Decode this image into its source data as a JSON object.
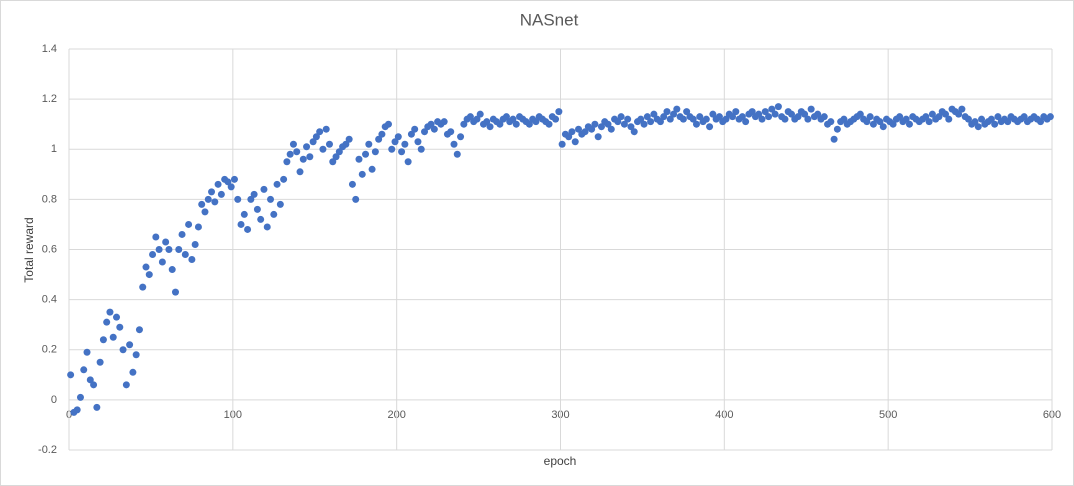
{
  "chart_data": {
    "type": "scatter",
    "title": "NASnet",
    "x_label": "epoch",
    "y_label": "Total reward",
    "color": "#4472c4",
    "grid": true,
    "xlim": [
      0,
      600
    ],
    "xticks": [
      0,
      100,
      200,
      300,
      400,
      500,
      600
    ],
    "ylim": [
      -0.2,
      1.4
    ],
    "yticks": [
      -0.2,
      0,
      0.2,
      0.4,
      0.6,
      0.8,
      1,
      1.2,
      1.4
    ],
    "x": [
      1,
      3,
      5,
      7,
      9,
      11,
      13,
      15,
      17,
      19,
      21,
      23,
      25,
      27,
      29,
      31,
      33,
      35,
      37,
      39,
      41,
      43,
      45,
      47,
      49,
      51,
      53,
      55,
      57,
      59,
      61,
      63,
      65,
      67,
      69,
      71,
      73,
      75,
      77,
      79,
      81,
      83,
      85,
      87,
      89,
      91,
      93,
      95,
      97,
      99,
      101,
      103,
      105,
      107,
      109,
      111,
      113,
      115,
      117,
      119,
      121,
      123,
      125,
      127,
      129,
      131,
      133,
      135,
      137,
      139,
      141,
      143,
      145,
      147,
      149,
      151,
      153,
      155,
      157,
      159,
      161,
      163,
      165,
      167,
      169,
      171,
      173,
      175,
      177,
      179,
      181,
      183,
      185,
      187,
      189,
      191,
      193,
      195,
      197,
      199,
      201,
      203,
      205,
      207,
      209,
      211,
      213,
      215,
      217,
      219,
      221,
      223,
      225,
      227,
      229,
      231,
      233,
      235,
      237,
      239,
      241,
      243,
      245,
      247,
      249,
      251,
      253,
      255,
      257,
      259,
      261,
      263,
      265,
      267,
      269,
      271,
      273,
      275,
      277,
      279,
      281,
      283,
      285,
      287,
      289,
      291,
      293,
      295,
      297,
      299,
      301,
      303,
      305,
      307,
      309,
      311,
      313,
      315,
      317,
      319,
      321,
      323,
      325,
      327,
      329,
      331,
      333,
      335,
      337,
      339,
      341,
      343,
      345,
      347,
      349,
      351,
      353,
      355,
      357,
      359,
      361,
      363,
      365,
      367,
      369,
      371,
      373,
      375,
      377,
      379,
      381,
      383,
      385,
      387,
      389,
      391,
      393,
      395,
      397,
      399,
      401,
      403,
      405,
      407,
      409,
      411,
      413,
      415,
      417,
      419,
      421,
      423,
      425,
      427,
      429,
      431,
      433,
      435,
      437,
      439,
      441,
      443,
      445,
      447,
      449,
      451,
      453,
      455,
      457,
      459,
      461,
      463,
      465,
      467,
      469,
      471,
      473,
      475,
      477,
      479,
      481,
      483,
      485,
      487,
      489,
      491,
      493,
      495,
      497,
      499,
      501,
      503,
      505,
      507,
      509,
      511,
      513,
      515,
      517,
      519,
      521,
      523,
      525,
      527,
      529,
      531,
      533,
      535,
      537,
      539,
      541,
      543,
      545,
      547,
      549,
      551,
      553,
      555,
      557,
      559,
      561,
      563,
      565,
      567,
      569,
      571,
      573,
      575,
      577,
      579,
      581,
      583,
      585,
      587,
      589,
      591,
      593,
      595,
      597,
      599
    ],
    "values": [
      0.1,
      -0.05,
      -0.04,
      0.01,
      0.12,
      0.19,
      0.08,
      0.06,
      -0.03,
      0.15,
      0.24,
      0.31,
      0.35,
      0.25,
      0.33,
      0.29,
      0.2,
      0.06,
      0.22,
      0.11,
      0.18,
      0.28,
      0.45,
      0.53,
      0.5,
      0.58,
      0.65,
      0.6,
      0.55,
      0.63,
      0.6,
      0.52,
      0.43,
      0.6,
      0.66,
      0.58,
      0.7,
      0.56,
      0.62,
      0.69,
      0.78,
      0.75,
      0.8,
      0.83,
      0.79,
      0.86,
      0.82,
      0.88,
      0.87,
      0.85,
      0.88,
      0.8,
      0.7,
      0.74,
      0.68,
      0.8,
      0.82,
      0.76,
      0.72,
      0.84,
      0.69,
      0.8,
      0.74,
      0.86,
      0.78,
      0.88,
      0.95,
      0.98,
      1.02,
      0.99,
      0.91,
      0.96,
      1.01,
      0.97,
      1.03,
      1.05,
      1.07,
      1.0,
      1.08,
      1.02,
      0.95,
      0.97,
      0.99,
      1.01,
      1.02,
      1.04,
      0.86,
      0.8,
      0.96,
      0.9,
      0.98,
      1.02,
      0.92,
      0.99,
      1.04,
      1.06,
      1.09,
      1.1,
      1.0,
      1.03,
      1.05,
      0.99,
      1.02,
      0.95,
      1.06,
      1.08,
      1.03,
      1.0,
      1.07,
      1.09,
      1.1,
      1.08,
      1.11,
      1.1,
      1.11,
      1.06,
      1.07,
      1.02,
      0.98,
      1.05,
      1.1,
      1.12,
      1.13,
      1.11,
      1.12,
      1.14,
      1.1,
      1.11,
      1.09,
      1.12,
      1.11,
      1.1,
      1.12,
      1.13,
      1.11,
      1.12,
      1.1,
      1.13,
      1.12,
      1.11,
      1.1,
      1.12,
      1.11,
      1.13,
      1.12,
      1.11,
      1.1,
      1.13,
      1.12,
      1.15,
      1.02,
      1.06,
      1.05,
      1.07,
      1.03,
      1.08,
      1.06,
      1.07,
      1.09,
      1.08,
      1.1,
      1.05,
      1.09,
      1.11,
      1.1,
      1.08,
      1.12,
      1.11,
      1.13,
      1.1,
      1.12,
      1.09,
      1.07,
      1.11,
      1.12,
      1.1,
      1.13,
      1.11,
      1.14,
      1.12,
      1.11,
      1.13,
      1.15,
      1.12,
      1.14,
      1.16,
      1.13,
      1.12,
      1.15,
      1.13,
      1.12,
      1.1,
      1.13,
      1.11,
      1.12,
      1.09,
      1.14,
      1.12,
      1.13,
      1.11,
      1.12,
      1.14,
      1.13,
      1.15,
      1.12,
      1.13,
      1.11,
      1.14,
      1.15,
      1.13,
      1.14,
      1.12,
      1.15,
      1.13,
      1.16,
      1.14,
      1.17,
      1.13,
      1.12,
      1.15,
      1.14,
      1.12,
      1.13,
      1.15,
      1.14,
      1.12,
      1.16,
      1.13,
      1.14,
      1.12,
      1.13,
      1.1,
      1.11,
      1.04,
      1.08,
      1.11,
      1.12,
      1.1,
      1.11,
      1.12,
      1.13,
      1.14,
      1.12,
      1.11,
      1.13,
      1.1,
      1.12,
      1.11,
      1.09,
      1.12,
      1.11,
      1.1,
      1.12,
      1.13,
      1.11,
      1.12,
      1.1,
      1.13,
      1.12,
      1.11,
      1.12,
      1.13,
      1.11,
      1.14,
      1.12,
      1.13,
      1.15,
      1.14,
      1.12,
      1.16,
      1.15,
      1.14,
      1.16,
      1.13,
      1.12,
      1.1,
      1.11,
      1.09,
      1.12,
      1.1,
      1.11,
      1.12,
      1.1,
      1.13,
      1.11,
      1.12,
      1.11,
      1.13,
      1.12,
      1.11,
      1.12,
      1.13,
      1.11,
      1.12,
      1.13,
      1.12,
      1.11,
      1.13,
      1.12,
      1.13
    ]
  }
}
